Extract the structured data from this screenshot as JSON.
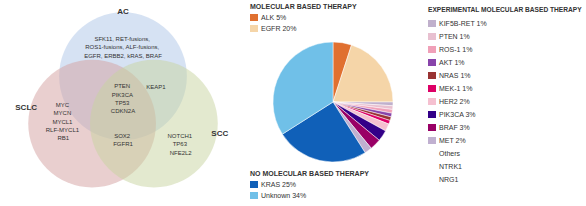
{
  "chart_data": [
    {
      "type": "venn",
      "categories": [
        "AC",
        "SCLC",
        "SCC"
      ],
      "colors": [
        "#aec6e8",
        "#d4a0a0",
        "#c8d4a0"
      ],
      "annotations": [
        "SFK11, RET-fusions,\nROS1-fusions, ALF-fusions,\nEGFR, ERBB2, kRAS, BRAF",
        "MYC\nMYCN\nMYCL1\nRLF-MYCL1\nRB1",
        "NOTCH1\nTP63\nNFE2L2",
        "PTEN\nPIK3CA\nTP53\nCDKN2A",
        "SOX2\nFGFR1",
        "KEAP1"
      ]
    },
    {
      "type": "pie",
      "groups": [
        {
          "name": "MOLECULAR BASED THERAPY",
          "categories": [
            "ALK 5%",
            "EGFR 20%"
          ],
          "values": [
            5,
            20
          ],
          "colors": [
            "#e07030",
            "#f5d5a8"
          ]
        },
        {
          "name": "EXPERIMENTAL MOLECULAR BASED THERAPY",
          "categories": [
            "KIF5B-RET 1%",
            "PTEN 1%",
            "ROS-1 1%",
            "AKT 1%",
            "NRAS 1%",
            "MEK-1 1%",
            "HER2 2%",
            "PIK3CA 3%",
            "BRAF 3%",
            "MET 2%",
            "Others",
            "NTRK1",
            "NRG1"
          ],
          "values": [
            1,
            1,
            1,
            1,
            1,
            1,
            2,
            3,
            3,
            2,
            null,
            null,
            null
          ],
          "colors": [
            "#c0b0cc",
            "#e8c0d0",
            "#f0a0b8",
            "#8844aa",
            "#993333",
            "#dd0066",
            "#f5c0d0",
            "#330088",
            "#990066",
            "#c0b0d0",
            null,
            null,
            null
          ]
        },
        {
          "name": "NO MOLECULAR BASED THERAPY",
          "categories": [
            "KRAS 25%",
            "Unknown 34%"
          ],
          "values": [
            25,
            34
          ],
          "colors": [
            "#1060b8",
            "#70c0e8"
          ]
        }
      ]
    }
  ]
}
